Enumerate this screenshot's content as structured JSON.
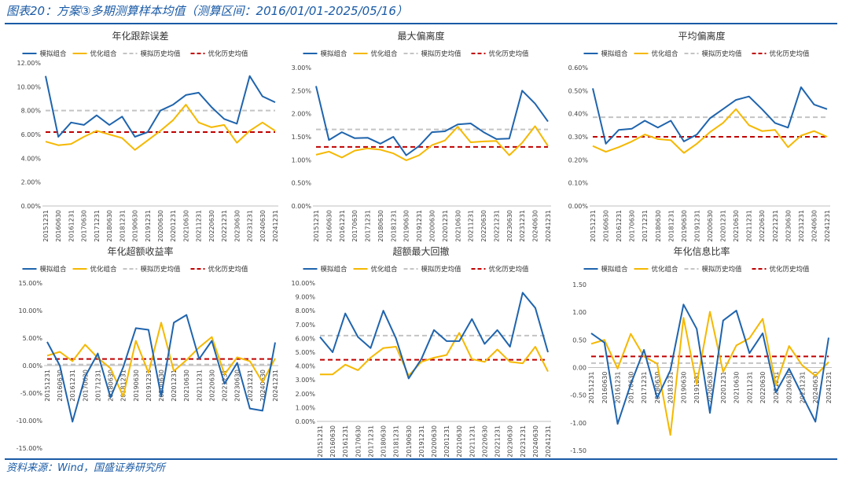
{
  "header": {
    "figure_title": "图表20：方案③多期测算样本均值（测算区间：2016/01/01-2025/05/16）"
  },
  "footer": {
    "source": "资料来源：Wind，国盛证券研究所"
  },
  "legend": {
    "sim": "模拟组合",
    "opt": "优化组合",
    "sim_avg": "模拟历史均值",
    "opt_avg": "优化历史均值"
  },
  "colors": {
    "sim": "#1f64ad",
    "opt": "#f5b800",
    "sim_avg": "#c4c4c4",
    "opt_avg": "#c00000",
    "accent": "#1a5ba6"
  },
  "chart_data": [
    {
      "type": "line",
      "title": "年化跟踪误差",
      "categories": [
        "20151231",
        "20160630",
        "20161231",
        "20170630",
        "20171231",
        "20180630",
        "20181231",
        "20190630",
        "20191231",
        "20200630",
        "20201231",
        "20210630",
        "20211231",
        "20220630",
        "20221231",
        "20230630",
        "20231231",
        "20240630",
        "20241231"
      ],
      "series": [
        {
          "name": "模拟组合",
          "values": [
            10.9,
            5.8,
            7.0,
            6.8,
            7.6,
            6.8,
            7.5,
            5.8,
            6.2,
            8.0,
            8.5,
            9.3,
            9.5,
            8.3,
            7.3,
            6.9,
            10.9,
            9.2,
            8.7
          ]
        },
        {
          "name": "优化组合",
          "values": [
            5.4,
            5.1,
            5.2,
            5.8,
            6.3,
            6.0,
            5.7,
            4.7,
            5.5,
            6.3,
            7.2,
            8.5,
            7.0,
            6.6,
            6.8,
            5.3,
            6.3,
            7.0,
            6.3
          ]
        }
      ],
      "sim_avg": 8.0,
      "opt_avg": 6.2,
      "ylim": [
        0,
        12
      ],
      "yticks": [
        "0.00%",
        "2.00%",
        "4.00%",
        "6.00%",
        "8.00%",
        "10.00%",
        "12.00%"
      ]
    },
    {
      "type": "line",
      "title": "最大偏离度",
      "categories": [
        "20151231",
        "20160630",
        "20161231",
        "20170630",
        "20171231",
        "20180630",
        "20181231",
        "20190630",
        "20191231",
        "20200630",
        "20201231",
        "20210630",
        "20211231",
        "20220630",
        "20221231",
        "20230630",
        "20231231",
        "20240630",
        "20241231"
      ],
      "series": [
        {
          "name": "模拟组合",
          "values": [
            2.6,
            1.43,
            1.6,
            1.47,
            1.48,
            1.35,
            1.5,
            1.1,
            1.3,
            1.6,
            1.62,
            1.77,
            1.79,
            1.6,
            1.45,
            1.46,
            2.5,
            2.22,
            1.83
          ]
        },
        {
          "name": "优化组合",
          "values": [
            1.11,
            1.18,
            1.05,
            1.2,
            1.25,
            1.22,
            1.14,
            0.99,
            1.1,
            1.32,
            1.42,
            1.72,
            1.38,
            1.4,
            1.41,
            1.1,
            1.37,
            1.73,
            1.3
          ]
        }
      ],
      "sim_avg": 1.66,
      "opt_avg": 1.28,
      "ylim": [
        0,
        3
      ],
      "yticks": [
        "0.00%",
        "0.50%",
        "1.00%",
        "1.50%",
        "2.00%",
        "2.50%",
        "3.00%"
      ]
    },
    {
      "type": "line",
      "title": "平均偏离度",
      "categories": [
        "20151231",
        "20160630",
        "20161231",
        "20170630",
        "20171231",
        "20180630",
        "20181231",
        "20190630",
        "20191231",
        "20200630",
        "20201231",
        "20210630",
        "20211231",
        "20220630",
        "20221231",
        "20230630",
        "20231231",
        "20240630",
        "20241231"
      ],
      "series": [
        {
          "name": "模拟组合",
          "values": [
            0.51,
            0.27,
            0.33,
            0.335,
            0.37,
            0.34,
            0.37,
            0.28,
            0.31,
            0.38,
            0.42,
            0.46,
            0.475,
            0.42,
            0.36,
            0.34,
            0.515,
            0.44,
            0.42
          ]
        },
        {
          "name": "优化组合",
          "values": [
            0.26,
            0.235,
            0.255,
            0.28,
            0.31,
            0.29,
            0.285,
            0.23,
            0.27,
            0.32,
            0.36,
            0.42,
            0.35,
            0.325,
            0.33,
            0.255,
            0.305,
            0.325,
            0.3
          ]
        }
      ],
      "sim_avg": 0.385,
      "opt_avg": 0.3,
      "ylim": [
        0,
        0.6
      ],
      "yticks": [
        "0.00%",
        "0.10%",
        "0.20%",
        "0.30%",
        "0.40%",
        "0.50%",
        "0.60%"
      ]
    },
    {
      "type": "line",
      "title": "年化超额收益率",
      "categories": [
        "20151231",
        "20160630",
        "20161231",
        "20170630",
        "20171231",
        "20180630",
        "20181231",
        "20190630",
        "20191231",
        "20200630",
        "20201231",
        "20210630",
        "20211231",
        "20220630",
        "20221231",
        "20230630",
        "20231231",
        "20240630",
        "20241231"
      ],
      "series": [
        {
          "name": "模拟组合",
          "values": [
            4.3,
            0.0,
            -10.2,
            -2.0,
            2.2,
            -5.8,
            -0.3,
            6.8,
            6.5,
            -5.6,
            7.8,
            9.2,
            1.2,
            4.5,
            -3.3,
            0.5,
            -7.8,
            -8.2,
            4.2
          ]
        },
        {
          "name": "优化组合",
          "values": [
            1.8,
            2.5,
            0.8,
            3.8,
            1.4,
            -0.5,
            -5.6,
            4.5,
            -1.3,
            7.8,
            -1.0,
            1.0,
            3.3,
            5.2,
            -1.6,
            1.5,
            0.8,
            -3.0,
            1.3
          ]
        }
      ],
      "sim_avg": 0.2,
      "opt_avg": 1.2,
      "ylim": [
        -15,
        15
      ],
      "yticks": [
        "-15.00%",
        "-10.00%",
        "-5.00%",
        "0.00%",
        "5.00%",
        "10.00%",
        "15.00%"
      ]
    },
    {
      "type": "line",
      "title": "超额最大回撤",
      "categories": [
        "20151231",
        "20160630",
        "20161231",
        "20170630",
        "20171231",
        "20180630",
        "20181231",
        "20190630",
        "20191231",
        "20200630",
        "20201231",
        "20210630",
        "20211231",
        "20220630",
        "20221231",
        "20230630",
        "20231231",
        "20240630",
        "20241231"
      ],
      "series": [
        {
          "name": "模拟组合",
          "values": [
            6.1,
            5.0,
            7.8,
            6.1,
            5.3,
            8.0,
            6.0,
            3.1,
            4.5,
            6.6,
            5.8,
            5.8,
            7.4,
            5.6,
            6.6,
            5.4,
            9.3,
            8.2,
            5.0
          ]
        },
        {
          "name": "优化组合",
          "values": [
            3.4,
            3.4,
            4.1,
            3.7,
            4.6,
            5.3,
            5.4,
            3.3,
            4.3,
            4.6,
            4.8,
            6.4,
            4.5,
            4.3,
            5.2,
            4.3,
            4.2,
            5.4,
            3.6
          ]
        }
      ],
      "sim_avg": 6.2,
      "opt_avg": 4.45,
      "ylim": [
        0,
        10
      ],
      "yticks": [
        "0.00%",
        "1.00%",
        "2.00%",
        "3.00%",
        "4.00%",
        "5.00%",
        "6.00%",
        "7.00%",
        "8.00%",
        "9.00%",
        "10.00%"
      ]
    },
    {
      "type": "line",
      "title": "年化信息比率",
      "categories": [
        "20151231",
        "20160630",
        "20161231",
        "20170630",
        "20171231",
        "20180630",
        "20181231",
        "20190630",
        "20191231",
        "20200630",
        "20201231",
        "20210630",
        "20211231",
        "20220630",
        "20221231",
        "20230630",
        "20231231",
        "20240630",
        "20241231"
      ],
      "series": [
        {
          "name": "模拟组合",
          "values": [
            0.62,
            0.45,
            -1.02,
            -0.3,
            0.32,
            -0.55,
            -0.05,
            1.14,
            0.7,
            -0.82,
            0.85,
            1.03,
            0.26,
            0.62,
            -0.45,
            -0.02,
            -0.5,
            -0.98,
            0.54
          ]
        },
        {
          "name": "优化组合",
          "values": [
            0.43,
            0.5,
            -0.02,
            0.61,
            0.2,
            0.07,
            -1.22,
            0.9,
            -0.3,
            1.01,
            -0.08,
            0.4,
            0.53,
            0.88,
            -0.32,
            0.39,
            0.04,
            -0.15,
            0.1
          ]
        }
      ],
      "sim_avg": 0.08,
      "opt_avg": 0.2,
      "ylim": [
        -1.5,
        1.5
      ],
      "yticks": [
        "-1.50",
        "-1.00",
        "-0.50",
        "0.00",
        "0.50",
        "1.00",
        "1.50"
      ]
    }
  ]
}
